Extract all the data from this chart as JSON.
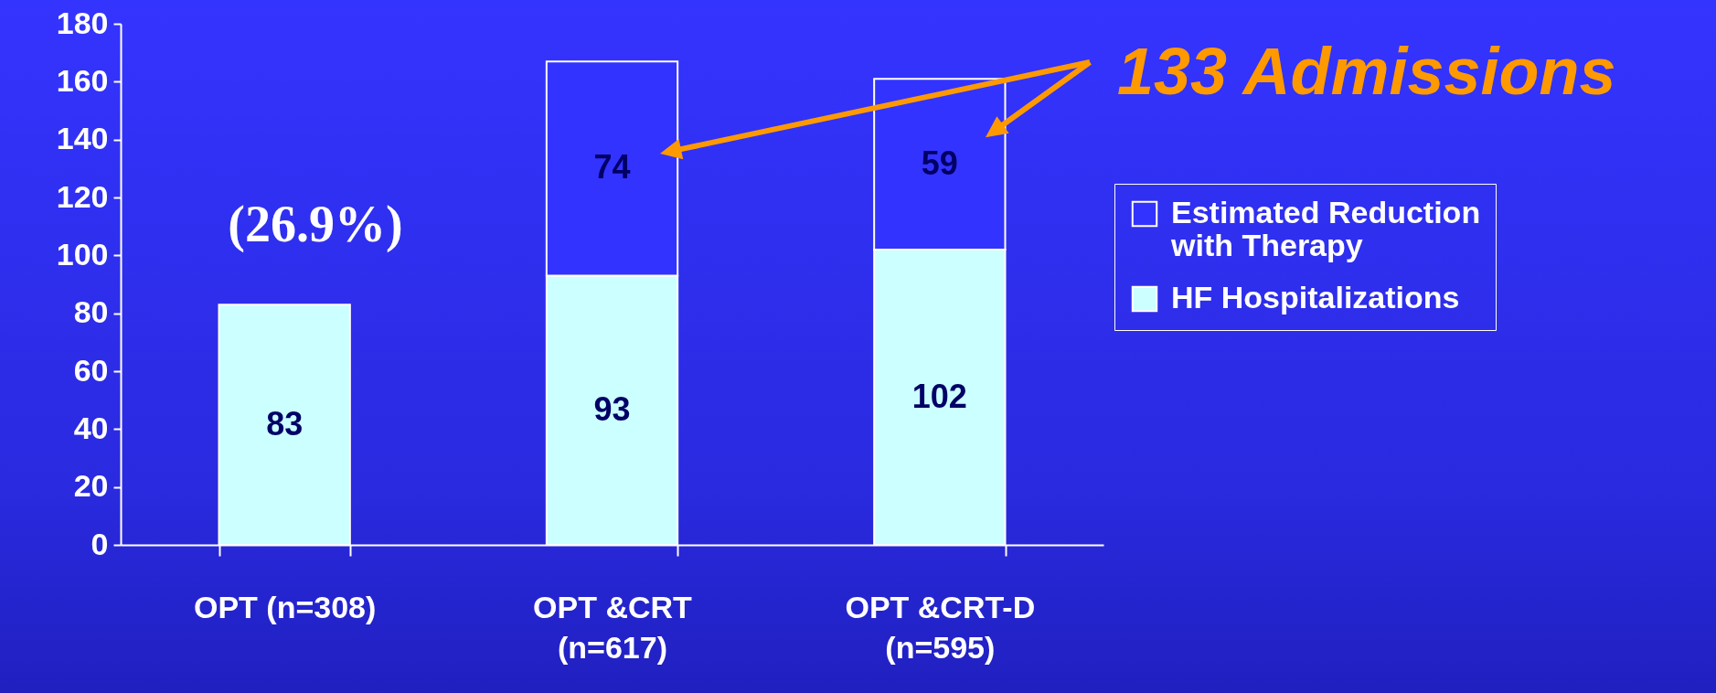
{
  "chart_data": {
    "type": "bar",
    "stacked": true,
    "categories": [
      "OPT (n=308)",
      "OPT &CRT\n(n=617)",
      "OPT &CRT-D\n(n=595)"
    ],
    "series": [
      {
        "name": "HF Hospitalizations",
        "color": "#ccffff",
        "values": [
          83,
          93,
          102
        ]
      },
      {
        "name": "Estimated Reduction with Therapy",
        "color": "#3333ff",
        "values": [
          null,
          74,
          59
        ]
      }
    ],
    "ylim": [
      0,
      180
    ],
    "yticks": [
      0,
      20,
      40,
      60,
      80,
      100,
      120,
      140,
      160,
      180
    ],
    "data_labels": true,
    "legend": "right",
    "grid": false,
    "annotations": [
      "(26.9%)",
      {
        "text": "133 Admissions",
        "x": "OPT &CRT-D\n(n=595)",
        "y": 161
      }
    ]
  }
}
